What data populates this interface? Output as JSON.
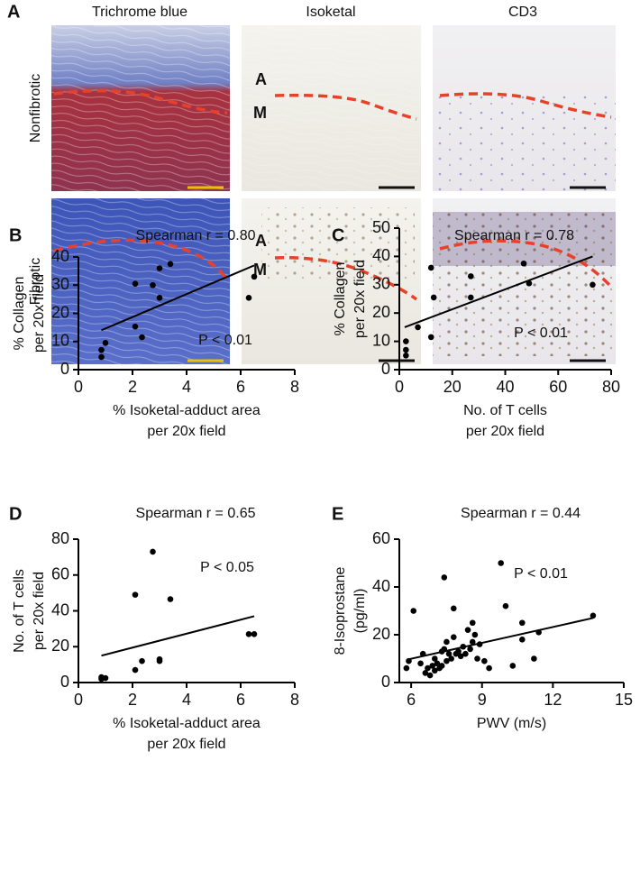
{
  "panel_a": {
    "label": "A",
    "columns": [
      "Trichrome blue",
      "Isoketal",
      "CD3"
    ],
    "rows": [
      "Nonfibrotic",
      "Fibrotic"
    ],
    "layers": [
      "A",
      "M"
    ]
  },
  "chart_data": [
    {
      "type": "scatter",
      "panel": "B",
      "title": "Spearman r = 0.80",
      "annotation": "P < 0.01",
      "xlabel": [
        "% Isoketal-adduct area",
        "per 20x field"
      ],
      "ylabel": [
        "% Collagen",
        "per 20x field"
      ],
      "xlim": [
        0,
        8
      ],
      "ylim": [
        0,
        40
      ],
      "xticks": [
        0,
        2,
        4,
        6,
        8
      ],
      "yticks": [
        0,
        10,
        20,
        30,
        40
      ],
      "color": "#000000",
      "x": [
        0.85,
        0.85,
        1.0,
        2.1,
        2.1,
        2.35,
        2.75,
        3.0,
        3.0,
        3.4,
        6.3,
        6.5
      ],
      "values": [
        7,
        4.5,
        9.5,
        30.5,
        15.3,
        11.5,
        30,
        36,
        25.5,
        37.5,
        25.5,
        33
      ],
      "fit": {
        "x": [
          0.85,
          6.5
        ],
        "y": [
          14,
          37
        ]
      }
    },
    {
      "type": "scatter",
      "panel": "C",
      "title": "Spearman r = 0.78",
      "annotation": "P < 0.01",
      "xlabel": [
        "No. of T cells",
        "per 20x field"
      ],
      "ylabel": [
        "% Collagen",
        "per 20x field"
      ],
      "xlim": [
        0,
        80
      ],
      "ylim": [
        0,
        50
      ],
      "xticks": [
        0,
        20,
        40,
        60,
        80
      ],
      "yticks": [
        0,
        10,
        20,
        30,
        40,
        50
      ],
      "color": "#000000",
      "x": [
        2.5,
        2.5,
        2.5,
        7,
        12,
        12,
        13,
        27,
        27,
        47,
        49,
        73
      ],
      "values": [
        5,
        7,
        10,
        15,
        11.5,
        36,
        25.5,
        33,
        25.5,
        37.5,
        30.5,
        30
      ],
      "fit": {
        "x": [
          2,
          73
        ],
        "y": [
          15,
          40
        ]
      }
    },
    {
      "type": "scatter",
      "panel": "D",
      "title": "Spearman r = 0.65",
      "annotation": "P < 0.05",
      "xlabel": [
        "% Isoketal-adduct area",
        "per 20x field"
      ],
      "ylabel": [
        "No. of T cells",
        "per 20x field"
      ],
      "xlim": [
        0,
        8
      ],
      "ylim": [
        0,
        80
      ],
      "xticks": [
        0,
        2,
        4,
        6,
        8
      ],
      "yticks": [
        0,
        20,
        40,
        60,
        80
      ],
      "color": "#000000",
      "x": [
        0.85,
        1.0,
        0.85,
        2.1,
        2.1,
        2.35,
        2.75,
        3.0,
        3.0,
        3.4,
        6.3,
        6.5
      ],
      "values": [
        3,
        2.5,
        2,
        49,
        7,
        12,
        73,
        12,
        13,
        46.5,
        27,
        27
      ],
      "fit": {
        "x": [
          0.85,
          6.5
        ],
        "y": [
          15,
          37
        ]
      }
    },
    {
      "type": "scatter",
      "panel": "E",
      "title": "Spearman r = 0.44",
      "annotation": "P < 0.01",
      "xlabel": [
        "PWV (m/s)"
      ],
      "ylabel": [
        "8-Isoprostane",
        "(pg/ml)"
      ],
      "xlim": [
        5.5,
        15
      ],
      "ylim": [
        0,
        60
      ],
      "xticks": [
        6,
        9,
        12,
        15
      ],
      "yticks": [
        0,
        20,
        40,
        60
      ],
      "color": "#000000",
      "x": [
        5.8,
        5.9,
        6.1,
        6.4,
        6.5,
        6.6,
        6.7,
        6.8,
        6.9,
        7.0,
        7.0,
        7.1,
        7.2,
        7.3,
        7.3,
        7.4,
        7.4,
        7.5,
        7.5,
        7.6,
        7.7,
        7.8,
        7.8,
        7.9,
        8.0,
        8.1,
        8.2,
        8.3,
        8.4,
        8.5,
        8.6,
        8.6,
        8.7,
        8.8,
        8.9,
        9.1,
        9.3,
        9.8,
        10.0,
        10.3,
        10.7,
        10.7,
        11.2,
        11.4,
        13.7
      ],
      "values": [
        6,
        9,
        30,
        8,
        12,
        4,
        6,
        3,
        7,
        10,
        5,
        8,
        6,
        7,
        13,
        14,
        44,
        17,
        9,
        12,
        10,
        31,
        19,
        12,
        13,
        11,
        15,
        12,
        22,
        14,
        17,
        25,
        20,
        10,
        16,
        9,
        6,
        50,
        32,
        7,
        18,
        25,
        10,
        21,
        28
      ],
      "fit": {
        "x": [
          5.8,
          13.7
        ],
        "y": [
          9.5,
          27
        ]
      }
    }
  ]
}
